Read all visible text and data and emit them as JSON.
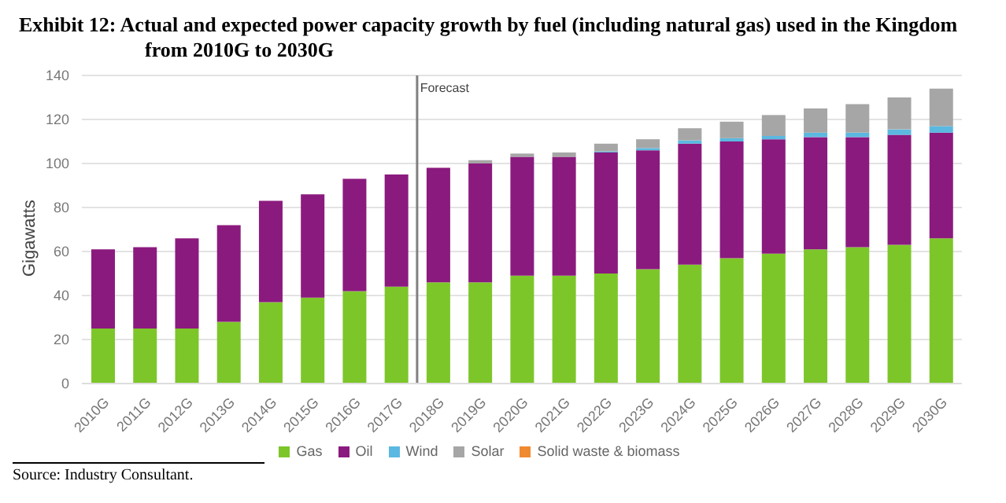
{
  "chart_data": {
    "type": "bar",
    "title": "Exhibit 12:  Actual and expected power capacity growth by fuel (including natural gas) used in the Kingdom from 2010G to 2030G",
    "ylabel": "Gigawatts",
    "stacked": true,
    "grid": "y",
    "legend": "bottom",
    "categories": [
      "2010G",
      "2011G",
      "2012G",
      "2013G",
      "2014G",
      "2015G",
      "2016G",
      "2017G",
      "2018G",
      "2019G",
      "2020G",
      "2021G",
      "2022G",
      "2023G",
      "2024G",
      "2025G",
      "2026G",
      "2027G",
      "2028G",
      "2029G",
      "2030G"
    ],
    "ylim": [
      0,
      140
    ],
    "yticks": [
      0,
      20,
      40,
      60,
      80,
      100,
      120,
      140
    ],
    "series": [
      {
        "name": "Gas",
        "color": "#7dc62a",
        "values": [
          25,
          25,
          25,
          28,
          37,
          39,
          42,
          44,
          46,
          46,
          49,
          49,
          50,
          52,
          54,
          57,
          59,
          61,
          62,
          63,
          66
        ]
      },
      {
        "name": "Oil",
        "color": "#8b1a7e",
        "values": [
          36,
          37,
          41,
          44,
          46,
          47,
          51,
          51,
          52,
          54,
          54,
          54,
          55,
          54,
          55,
          53,
          52,
          51,
          50,
          50,
          48
        ]
      },
      {
        "name": "Wind",
        "color": "#5bb8e0",
        "values": [
          0,
          0,
          0,
          0,
          0,
          0,
          0,
          0,
          0,
          0,
          0,
          0,
          0.5,
          1,
          1.5,
          1.5,
          1.5,
          2,
          2,
          2.5,
          3
        ]
      },
      {
        "name": "Solar",
        "color": "#a6a6a6",
        "values": [
          0,
          0,
          0,
          0,
          0,
          0,
          0,
          0,
          0,
          1.5,
          1.5,
          2,
          3.5,
          4,
          5.5,
          7.5,
          9.5,
          11,
          13,
          14.5,
          17
        ]
      },
      {
        "name": "Solid waste & biomass",
        "color": "#f08a30",
        "values": [
          0,
          0,
          0,
          0,
          0,
          0,
          0,
          0,
          0,
          0,
          0,
          0,
          0,
          0,
          0,
          0,
          0,
          0,
          0,
          0,
          0
        ]
      }
    ],
    "ref_lines": [
      {
        "axis": "x",
        "value": "2018G",
        "label": "Forecast",
        "color": "#808080"
      }
    ],
    "annotations": [
      "Source: Industry Consultant."
    ]
  }
}
